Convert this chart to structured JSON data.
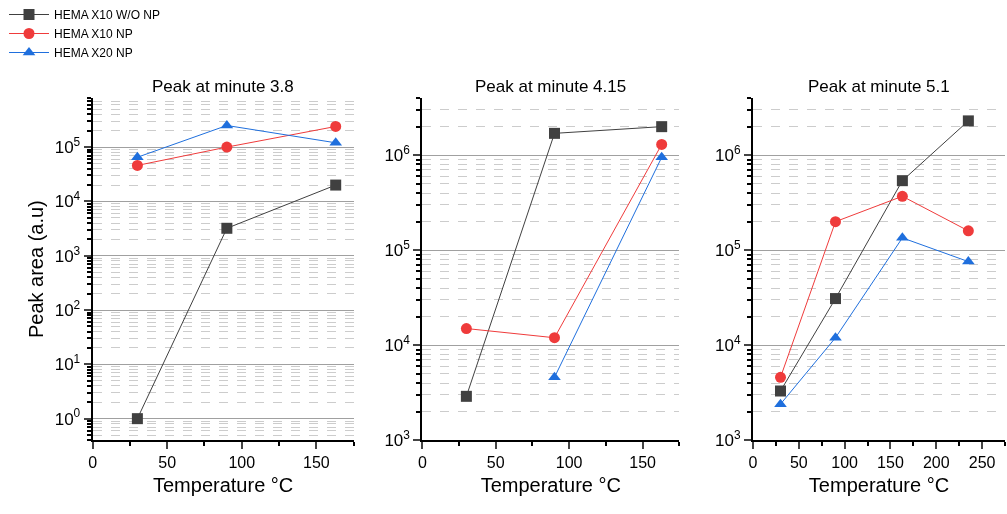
{
  "chart_data": [
    {
      "type": "line",
      "title": "Peak at minute 3.8",
      "xlabel": "Temperature °C",
      "ylabel": "Peak area (a.u)",
      "log": "y",
      "grid": "y",
      "legend": "top left",
      "x": [
        30,
        90,
        163
      ],
      "xlim": [
        0,
        175
      ],
      "xticks": [
        0,
        50,
        100,
        150
      ],
      "ylim": [
        0.4,
        800000
      ],
      "yticks": [
        {
          "value": 1,
          "label": "10$^{0}$"
        },
        {
          "value": 10,
          "label": "10$^{1}$"
        },
        {
          "value": 100,
          "label": "10$^{2}$"
        },
        {
          "value": 1000,
          "label": "10$^{3}$"
        },
        {
          "value": 10000,
          "label": "10$^{4}$"
        },
        {
          "value": 100000,
          "label": "10$^{5}$"
        }
      ],
      "series": [
        {
          "name": "HEMA X10 W/O NP",
          "color": "#404040",
          "marker": "square",
          "values": [
            1,
            3200,
            20000
          ]
        },
        {
          "name": "HEMA X10 NP",
          "color": "#ef3b3b",
          "marker": "circle",
          "values": [
            46000,
            100000,
            240000
          ]
        },
        {
          "name": "HEMA X20 NP",
          "color": "#1f6fdd",
          "marker": "triangle",
          "values": [
            65000,
            250000,
            120000
          ]
        }
      ]
    },
    {
      "type": "line",
      "title": "Peak at minute 4.15",
      "xlabel": "Temperature °C",
      "log": "y",
      "grid": "y",
      "x": [
        30,
        90,
        163
      ],
      "xlim": [
        0,
        175
      ],
      "xticks": [
        0,
        50,
        100,
        150
      ],
      "ylim": [
        1000,
        4000000
      ],
      "yticks": [
        {
          "value": 1000,
          "label": "10$^{3}$"
        },
        {
          "value": 10000,
          "label": "10$^{4}$"
        },
        {
          "value": 100000,
          "label": "10$^{5}$"
        },
        {
          "value": 1000000,
          "label": "10$^{6}$"
        }
      ],
      "series": [
        {
          "color": "#404040",
          "marker": "square",
          "values": [
            2900,
            1700000,
            2000000
          ]
        },
        {
          "color": "#ef3b3b",
          "marker": "circle",
          "values": [
            15000,
            12000,
            1300000
          ]
        },
        {
          "color": "#1f6fdd",
          "marker": "triangle",
          "values": [
            null,
            4600,
            950000
          ]
        }
      ]
    },
    {
      "type": "line",
      "title": "Peak at minute 5.1",
      "xlabel": "Temperature °C",
      "log": "y",
      "grid": "y",
      "x": [
        30,
        90,
        163,
        235
      ],
      "xlim": [
        0,
        275
      ],
      "xticks": [
        0,
        50,
        100,
        150,
        200,
        250
      ],
      "ylim": [
        1000,
        4000000
      ],
      "yticks": [
        {
          "value": 1000,
          "label": "10$^{3}$"
        },
        {
          "value": 10000,
          "label": "10$^{4}$"
        },
        {
          "value": 100000,
          "label": "10$^{5}$"
        },
        {
          "value": 1000000,
          "label": "10$^{6}$"
        }
      ],
      "series": [
        {
          "color": "#404040",
          "marker": "square",
          "values": [
            3300,
            31000,
            540000,
            2300000
          ]
        },
        {
          "color": "#ef3b3b",
          "marker": "circle",
          "values": [
            4600,
            200000,
            370000,
            160000
          ]
        },
        {
          "color": "#1f6fdd",
          "marker": "triangle",
          "values": [
            2400,
            12000,
            135000,
            76000
          ]
        }
      ]
    }
  ]
}
